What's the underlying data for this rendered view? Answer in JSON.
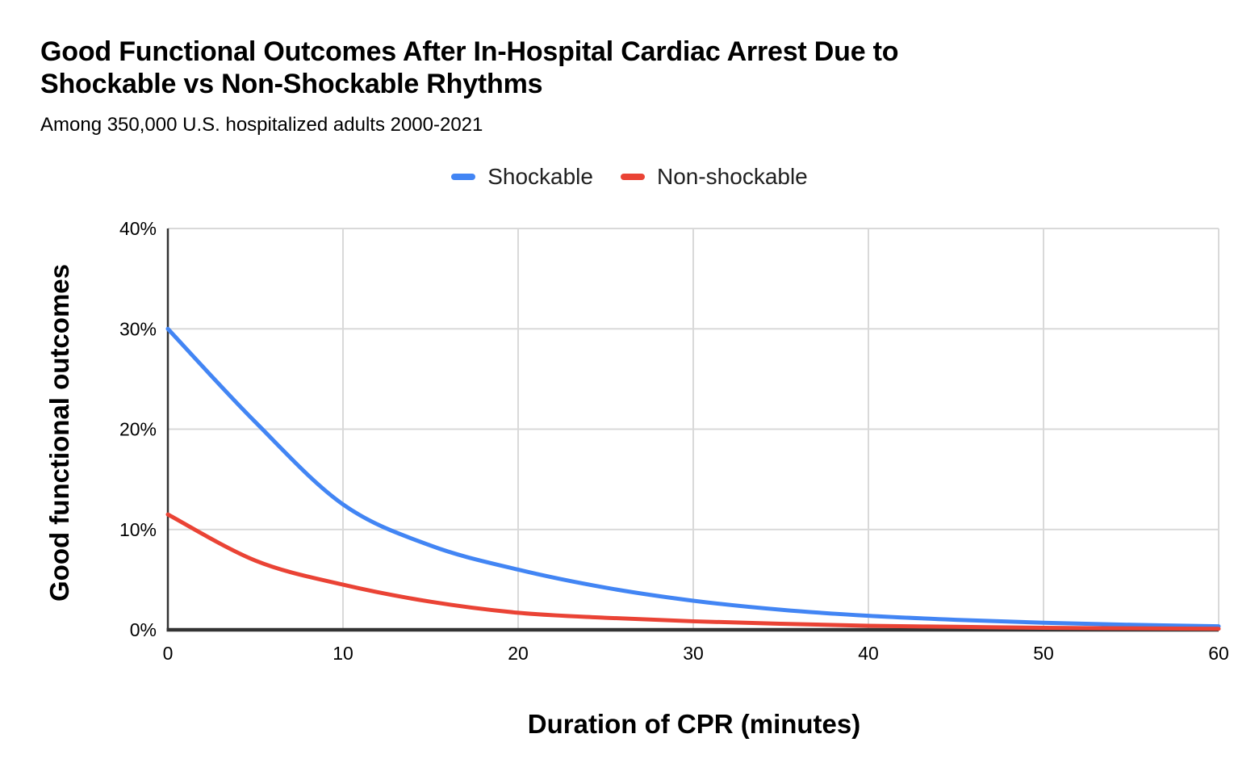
{
  "chart_data": {
    "type": "line",
    "title": "Good Functional Outcomes After In-Hospital Cardiac Arrest Due to Shockable vs Non-Shockable Rhythms",
    "title_lines": [
      "Good Functional Outcomes After In-Hospital Cardiac Arrest Due to",
      "Shockable vs Non-Shockable Rhythms"
    ],
    "subtitle": "Among 350,000 U.S. hospitalized adults 2000-2021",
    "xlabel": "Duration of CPR (minutes)",
    "ylabel": "Good functional outcomes",
    "xlim": [
      0,
      60
    ],
    "ylim": [
      0,
      40
    ],
    "grid": true,
    "legend_position": "top",
    "x": [
      0,
      5,
      10,
      15,
      20,
      25,
      30,
      35,
      40,
      45,
      50,
      55,
      60
    ],
    "series": [
      {
        "name": "Shockable",
        "color": "#4285f4",
        "values": [
          30,
          20.7,
          12.5,
          8.4,
          6.0,
          4.2,
          2.9,
          2.0,
          1.4,
          1.0,
          0.7,
          0.5,
          0.35
        ]
      },
      {
        "name": "Non-shockable",
        "color": "#ea4335",
        "values": [
          11.5,
          6.9,
          4.5,
          2.8,
          1.7,
          1.2,
          0.85,
          0.6,
          0.4,
          0.3,
          0.2,
          0.15,
          0.1
        ]
      }
    ],
    "xticks": {
      "values": [
        0,
        10,
        20,
        30,
        40,
        50,
        60
      ],
      "labels": [
        "0",
        "10",
        "20",
        "30",
        "40",
        "50",
        "60"
      ]
    },
    "yticks": {
      "values": [
        0,
        10,
        20,
        30,
        40
      ],
      "labels": [
        "0%",
        "10%",
        "20%",
        "30%",
        "40%"
      ]
    },
    "colors": {
      "grid": "#d9d9d9",
      "axis": "#333333",
      "text": "#000000",
      "background": "#ffffff"
    }
  }
}
